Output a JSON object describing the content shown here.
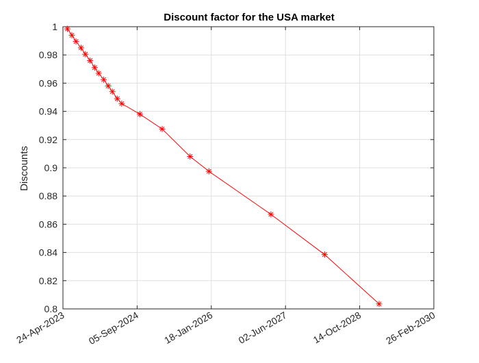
{
  "chart_data": {
    "type": "line",
    "title": "Discount factor for the USA market",
    "xlabel": "",
    "ylabel": "Discounts",
    "x_axis_type": "date",
    "xlim": [
      "2023-04-24",
      "2030-02-26"
    ],
    "ylim": [
      0.8,
      1.0
    ],
    "x_ticks": [
      {
        "date": "2023-04-24",
        "label": "24-Apr-2023"
      },
      {
        "date": "2024-09-05",
        "label": "05-Sep-2024"
      },
      {
        "date": "2026-01-18",
        "label": "18-Jan-2026"
      },
      {
        "date": "2027-06-02",
        "label": "02-Jun-2027"
      },
      {
        "date": "2028-10-14",
        "label": "14-Oct-2028"
      },
      {
        "date": "2030-02-26",
        "label": "26-Feb-2030"
      }
    ],
    "y_ticks": [
      {
        "value": 0.8,
        "label": "0.8"
      },
      {
        "value": 0.82,
        "label": "0.82"
      },
      {
        "value": 0.84,
        "label": "0.84"
      },
      {
        "value": 0.86,
        "label": "0.86"
      },
      {
        "value": 0.88,
        "label": "0.88"
      },
      {
        "value": 0.9,
        "label": "0.9"
      },
      {
        "value": 0.92,
        "label": "0.92"
      },
      {
        "value": 0.94,
        "label": "0.94"
      },
      {
        "value": 0.96,
        "label": "0.96"
      },
      {
        "value": 0.98,
        "label": "0.98"
      },
      {
        "value": 1.0,
        "label": "1"
      }
    ],
    "grid": true,
    "legend": "none",
    "series": [
      {
        "color": "#ff0000",
        "marker": "asterisk",
        "points": [
          {
            "x": "2023-05-24",
            "y": 0.9985
          },
          {
            "x": "2023-06-23",
            "y": 0.994
          },
          {
            "x": "2023-07-21",
            "y": 0.9895
          },
          {
            "x": "2023-08-24",
            "y": 0.985
          },
          {
            "x": "2023-09-22",
            "y": 0.9805
          },
          {
            "x": "2023-10-24",
            "y": 0.976
          },
          {
            "x": "2023-11-24",
            "y": 0.971
          },
          {
            "x": "2023-12-21",
            "y": 0.967
          },
          {
            "x": "2024-01-24",
            "y": 0.9625
          },
          {
            "x": "2024-02-23",
            "y": 0.958
          },
          {
            "x": "2024-03-22",
            "y": 0.954
          },
          {
            "x": "2024-04-24",
            "y": 0.949
          },
          {
            "x": "2024-05-24",
            "y": 0.9455
          },
          {
            "x": "2024-09-24",
            "y": 0.938
          },
          {
            "x": "2025-02-21",
            "y": 0.9275
          },
          {
            "x": "2025-08-28",
            "y": 0.908
          },
          {
            "x": "2026-01-02",
            "y": 0.8975
          },
          {
            "x": "2027-02-24",
            "y": 0.867
          },
          {
            "x": "2028-02-21",
            "y": 0.8385
          },
          {
            "x": "2029-02-22",
            "y": 0.8035
          }
        ]
      }
    ]
  }
}
